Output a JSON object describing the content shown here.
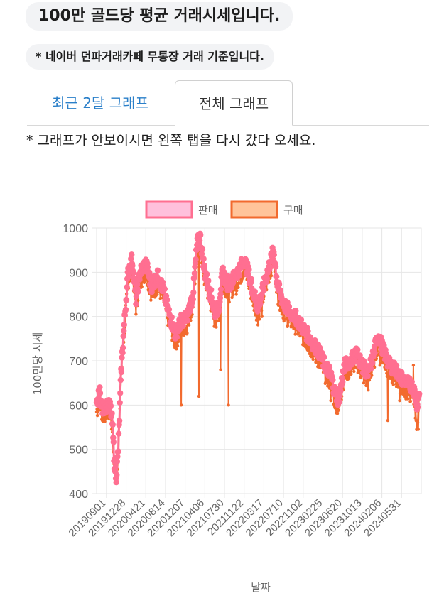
{
  "header": {
    "title": "100만 골드당 평균 거래시세입니다.",
    "note": "* 네이버 던파거래카페 무통장 거래 기준입니다."
  },
  "tabs": [
    {
      "label": "최근 2달 그래프"
    },
    {
      "label": "전체 그래프"
    }
  ],
  "hint": "* 그래프가 안보이시면 왼쪽 탭을 다시 갔다 오세요.",
  "colors": {
    "sell_line": "#ff6f91",
    "sell_fill": "#ffc0dc",
    "buy_line": "#f26a2e",
    "buy_fill": "#ffc49a",
    "grid": "#e6e6e6"
  },
  "chart_data": {
    "type": "line",
    "title": "",
    "xlabel": "날짜",
    "ylabel": "100만당 시세",
    "ylim": [
      400,
      1000
    ],
    "yticks": [
      400,
      500,
      600,
      700,
      800,
      900,
      1000
    ],
    "xtick_labels": [
      "20190901",
      "20191228",
      "20200421",
      "20200814",
      "20201207",
      "20210406",
      "20210730",
      "20211122",
      "20220317",
      "20220710",
      "20221102",
      "20230225",
      "20230620",
      "20231013",
      "20240206",
      "20240531"
    ],
    "legend": [
      "판매",
      "구매"
    ],
    "legend_position": "top",
    "x_end": 16.5,
    "series": [
      {
        "name": "판매",
        "key": [
          [
            0,
            595
          ],
          [
            0.15,
            630
          ],
          [
            0.3,
            590
          ],
          [
            0.5,
            600
          ],
          [
            0.7,
            595
          ],
          [
            0.8,
            560
          ],
          [
            0.9,
            470
          ],
          [
            1.0,
            440
          ],
          [
            1.1,
            500
          ],
          [
            1.25,
            680
          ],
          [
            1.4,
            780
          ],
          [
            1.6,
            900
          ],
          [
            1.8,
            930
          ],
          [
            2.0,
            840
          ],
          [
            2.2,
            900
          ],
          [
            2.5,
            920
          ],
          [
            2.8,
            870
          ],
          [
            3.1,
            890
          ],
          [
            3.4,
            860
          ],
          [
            3.6,
            820
          ],
          [
            3.8,
            790
          ],
          [
            4.0,
            760
          ],
          [
            4.3,
            790
          ],
          [
            4.6,
            800
          ],
          [
            4.9,
            850
          ],
          [
            5.1,
            960
          ],
          [
            5.25,
            985
          ],
          [
            5.5,
            900
          ],
          [
            5.8,
            850
          ],
          [
            6.0,
            810
          ],
          [
            6.2,
            820
          ],
          [
            6.4,
            900
          ],
          [
            6.7,
            870
          ],
          [
            7.0,
            890
          ],
          [
            7.3,
            910
          ],
          [
            7.5,
            930
          ],
          [
            7.7,
            900
          ],
          [
            8.0,
            850
          ],
          [
            8.2,
            820
          ],
          [
            8.5,
            870
          ],
          [
            8.8,
            920
          ],
          [
            9.0,
            950
          ],
          [
            9.2,
            870
          ],
          [
            9.5,
            830
          ],
          [
            9.8,
            810
          ],
          [
            10.1,
            800
          ],
          [
            10.4,
            780
          ],
          [
            10.7,
            760
          ],
          [
            11.0,
            740
          ],
          [
            11.3,
            720
          ],
          [
            11.6,
            690
          ],
          [
            11.9,
            670
          ],
          [
            12.1,
            630
          ],
          [
            12.3,
            610
          ],
          [
            12.6,
            690
          ],
          [
            12.9,
            700
          ],
          [
            13.2,
            720
          ],
          [
            13.5,
            690
          ],
          [
            13.8,
            670
          ],
          [
            14.1,
            720
          ],
          [
            14.3,
            760
          ],
          [
            14.6,
            720
          ],
          [
            14.9,
            690
          ],
          [
            15.2,
            680
          ],
          [
            15.5,
            660
          ],
          [
            15.8,
            650
          ],
          [
            16.1,
            640
          ],
          [
            16.3,
            600
          ],
          [
            16.4,
            630
          ]
        ]
      },
      {
        "name": "구매",
        "key": [
          [
            0,
            585
          ],
          [
            0.15,
            610
          ],
          [
            0.3,
            575
          ],
          [
            0.5,
            585
          ],
          [
            0.7,
            580
          ],
          [
            0.8,
            545
          ],
          [
            0.9,
            460
          ],
          [
            1.0,
            430
          ],
          [
            1.1,
            490
          ],
          [
            1.25,
            670
          ],
          [
            1.4,
            765
          ],
          [
            1.6,
            880
          ],
          [
            1.8,
            910
          ],
          [
            2.0,
            820
          ],
          [
            2.2,
            880
          ],
          [
            2.5,
            900
          ],
          [
            2.8,
            850
          ],
          [
            3.1,
            870
          ],
          [
            3.4,
            840
          ],
          [
            3.6,
            800
          ],
          [
            3.8,
            770
          ],
          [
            4.0,
            740
          ],
          [
            4.3,
            770
          ],
          [
            4.6,
            780
          ],
          [
            4.9,
            830
          ],
          [
            5.1,
            940
          ],
          [
            5.25,
            965
          ],
          [
            5.5,
            880
          ],
          [
            5.8,
            830
          ],
          [
            6.0,
            790
          ],
          [
            6.2,
            800
          ],
          [
            6.4,
            880
          ],
          [
            6.7,
            850
          ],
          [
            7.0,
            870
          ],
          [
            7.3,
            890
          ],
          [
            7.5,
            910
          ],
          [
            7.7,
            880
          ],
          [
            8.0,
            830
          ],
          [
            8.2,
            800
          ],
          [
            8.5,
            850
          ],
          [
            8.8,
            900
          ],
          [
            9.0,
            930
          ],
          [
            9.2,
            850
          ],
          [
            9.5,
            810
          ],
          [
            9.8,
            790
          ],
          [
            10.1,
            780
          ],
          [
            10.4,
            760
          ],
          [
            10.7,
            740
          ],
          [
            11.0,
            720
          ],
          [
            11.3,
            700
          ],
          [
            11.6,
            670
          ],
          [
            11.9,
            650
          ],
          [
            12.1,
            610
          ],
          [
            12.3,
            590
          ],
          [
            12.6,
            670
          ],
          [
            12.9,
            680
          ],
          [
            13.2,
            700
          ],
          [
            13.5,
            670
          ],
          [
            13.8,
            650
          ],
          [
            14.1,
            700
          ],
          [
            14.3,
            740
          ],
          [
            14.6,
            700
          ],
          [
            14.9,
            670
          ],
          [
            15.2,
            660
          ],
          [
            15.5,
            640
          ],
          [
            15.8,
            630
          ],
          [
            16.1,
            620
          ],
          [
            16.3,
            550
          ],
          [
            16.4,
            610
          ]
        ],
        "dips": [
          [
            4.3,
            600
          ],
          [
            5.2,
            620
          ],
          [
            6.3,
            680
          ],
          [
            6.7,
            600
          ],
          [
            7.1,
            850
          ],
          [
            8.4,
            800
          ],
          [
            9.9,
            780
          ],
          [
            11.9,
            610
          ],
          [
            12.7,
            660
          ],
          [
            14.4,
            690
          ],
          [
            14.8,
            565
          ],
          [
            15.4,
            610
          ],
          [
            16.1,
            690
          ],
          [
            16.35,
            545
          ]
        ]
      }
    ]
  }
}
